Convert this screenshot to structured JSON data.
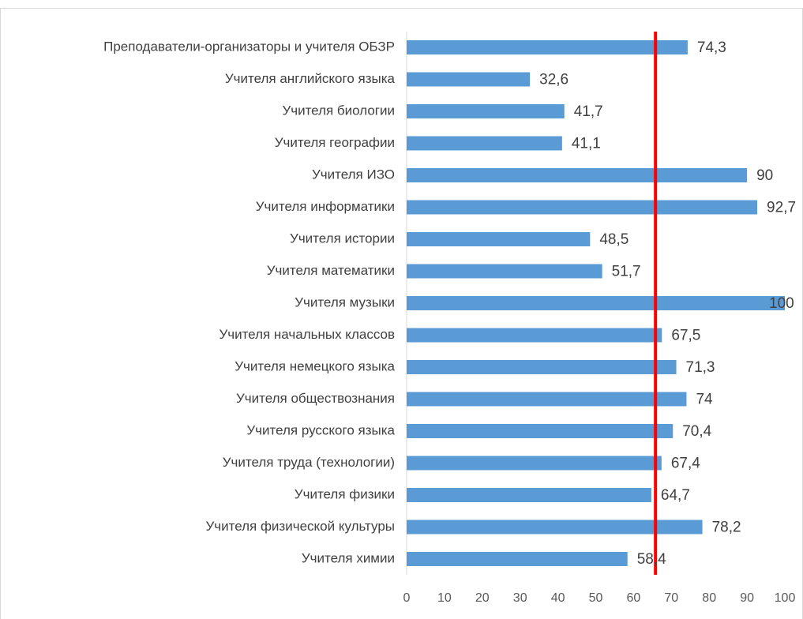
{
  "chart_data": {
    "type": "bar",
    "orientation": "horizontal",
    "categories": [
      "Преподаватели-организаторы и учителя ОБЗР",
      "Учителя английского языка",
      "Учителя биологии",
      "Учителя географии",
      "Учителя ИЗО",
      "Учителя информатики",
      "Учителя истории",
      "Учителя математики",
      "Учителя музыки",
      "Учителя начальных классов",
      "Учителя немецкого языка",
      "Учителя обществознания",
      "Учителя русского языка",
      "Учителя труда (технологии)",
      "Учителя физики",
      "Учителя физической культуры",
      "Учителя химии"
    ],
    "values": [
      74.3,
      32.6,
      41.7,
      41.1,
      90,
      92.7,
      48.5,
      51.7,
      100,
      67.5,
      71.3,
      74,
      70.4,
      67.4,
      64.7,
      78.2,
      58.4
    ],
    "value_labels": [
      "74,3",
      "32,6",
      "41,7",
      "41,1",
      "90",
      "92,7",
      "48,5",
      "51,7",
      "100",
      "67,5",
      "71,3",
      "74",
      "70,4",
      "67,4",
      "64,7",
      "78,2",
      "58,4"
    ],
    "color": "#5b9bd5",
    "xlim": [
      0,
      100
    ],
    "xticks": [
      0,
      10,
      20,
      30,
      40,
      50,
      60,
      70,
      80,
      90,
      100
    ],
    "reference_line": {
      "value": 65.8,
      "color": "#ff0000"
    },
    "grid": false
  }
}
